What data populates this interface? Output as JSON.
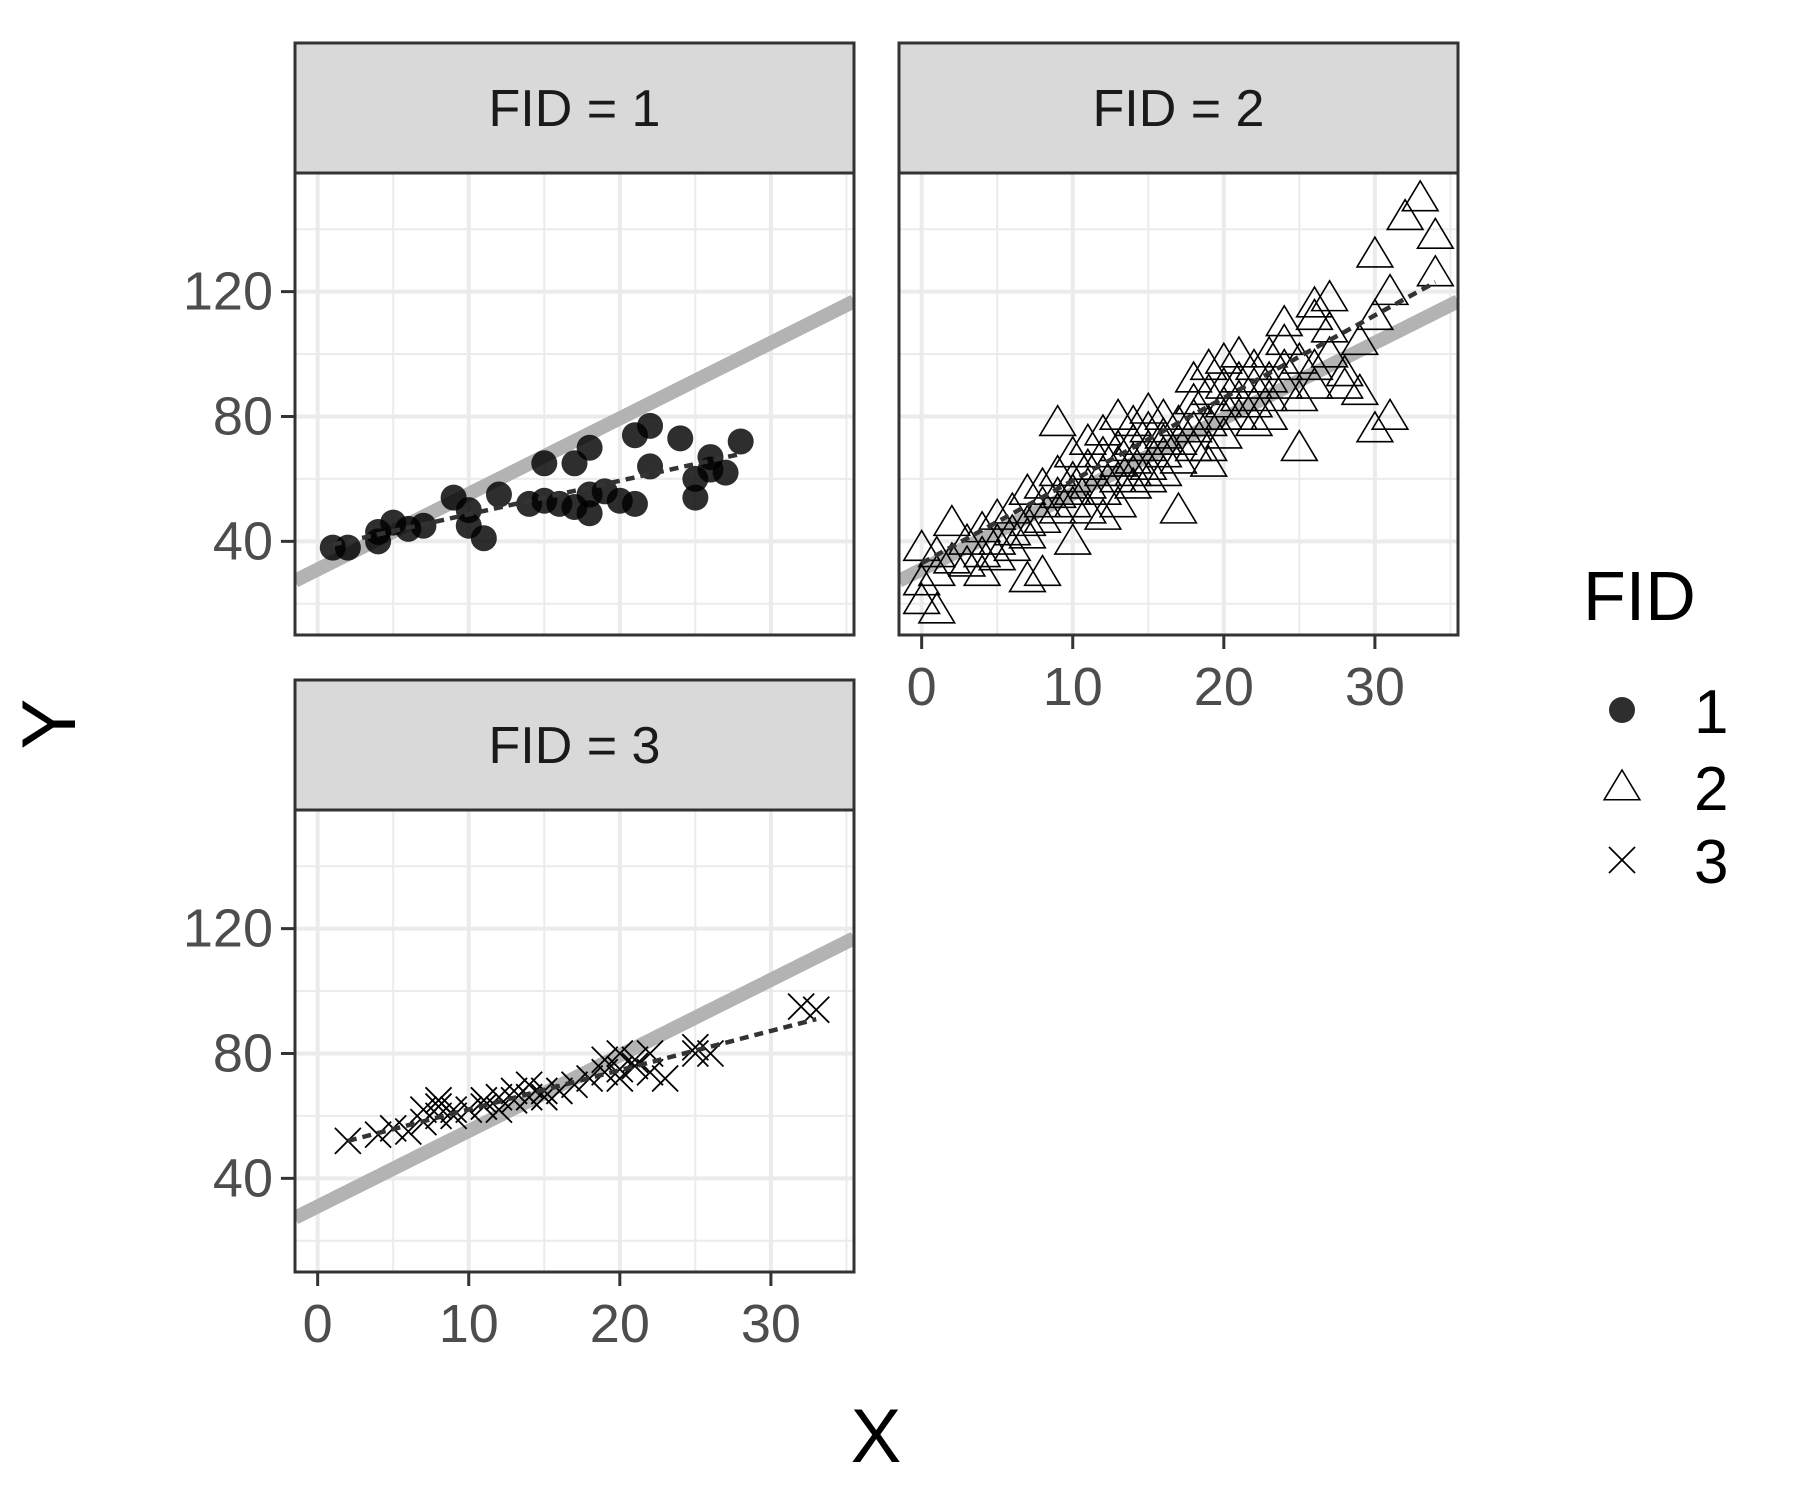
{
  "chart_data": {
    "type": "scatter",
    "facet_variable": "FID",
    "xlabel": "X",
    "ylabel": "Y",
    "xlim": [
      -1.5,
      35.5
    ],
    "ylim": [
      10,
      158
    ],
    "x_ticks": [
      0,
      10,
      20,
      30
    ],
    "y_ticks": [
      40,
      80,
      120
    ],
    "grid": true,
    "legend": {
      "title": "FID",
      "position": "right",
      "entries": [
        {
          "label": "1",
          "shape": "filled-circle"
        },
        {
          "label": "2",
          "shape": "open-triangle"
        },
        {
          "label": "3",
          "shape": "cross"
        }
      ]
    },
    "overall_line": {
      "intercept": 31,
      "slope": 2.42,
      "color": "#b3b3b3",
      "style": "solid-thick"
    },
    "facets": [
      {
        "strip": "FID = 1",
        "shape": "filled-circle",
        "fit_line": {
          "x": [
            1,
            28
          ],
          "y": [
            39,
            68
          ],
          "style": "dashed"
        },
        "points": [
          [
            1,
            38
          ],
          [
            2,
            38
          ],
          [
            4,
            40
          ],
          [
            4,
            43
          ],
          [
            5,
            46
          ],
          [
            6,
            44
          ],
          [
            7,
            45
          ],
          [
            9,
            54
          ],
          [
            10,
            45
          ],
          [
            10,
            50
          ],
          [
            11,
            41
          ],
          [
            12,
            55
          ],
          [
            14,
            52
          ],
          [
            15,
            53
          ],
          [
            15,
            65
          ],
          [
            16,
            52
          ],
          [
            17,
            51
          ],
          [
            17,
            65
          ],
          [
            18,
            70
          ],
          [
            18,
            49
          ],
          [
            18,
            55
          ],
          [
            19,
            56
          ],
          [
            20,
            53
          ],
          [
            21,
            52
          ],
          [
            21,
            74
          ],
          [
            22,
            64
          ],
          [
            22,
            77
          ],
          [
            24,
            73
          ],
          [
            25,
            54
          ],
          [
            25,
            60
          ],
          [
            26,
            63
          ],
          [
            26,
            67
          ],
          [
            27,
            62
          ],
          [
            28,
            72
          ]
        ]
      },
      {
        "strip": "FID = 2",
        "shape": "open-triangle",
        "fit_line": {
          "x": [
            0,
            34
          ],
          "y": [
            33,
            123
          ],
          "style": "dashed"
        },
        "points": [
          [
            0,
            21
          ],
          [
            0,
            27
          ],
          [
            0,
            38
          ],
          [
            1,
            18
          ],
          [
            1,
            30
          ],
          [
            1,
            36
          ],
          [
            2,
            34
          ],
          [
            2,
            46
          ],
          [
            3,
            33
          ],
          [
            3,
            40
          ],
          [
            4,
            36
          ],
          [
            4,
            44
          ],
          [
            4,
            30
          ],
          [
            5,
            40
          ],
          [
            5,
            48
          ],
          [
            5,
            35
          ],
          [
            6,
            43
          ],
          [
            6,
            50
          ],
          [
            6,
            38
          ],
          [
            7,
            46
          ],
          [
            7,
            56
          ],
          [
            7,
            28
          ],
          [
            7,
            42
          ],
          [
            8,
            52
          ],
          [
            8,
            47
          ],
          [
            8,
            30
          ],
          [
            8,
            58
          ],
          [
            9,
            55
          ],
          [
            9,
            50
          ],
          [
            9,
            62
          ],
          [
            9,
            78
          ],
          [
            10,
            56
          ],
          [
            10,
            60
          ],
          [
            10,
            52
          ],
          [
            10,
            40
          ],
          [
            10,
            68
          ],
          [
            11,
            58
          ],
          [
            11,
            64
          ],
          [
            11,
            50
          ],
          [
            11,
            72
          ],
          [
            12,
            62
          ],
          [
            12,
            68
          ],
          [
            12,
            56
          ],
          [
            12,
            75
          ],
          [
            12,
            48
          ],
          [
            13,
            65
          ],
          [
            13,
            70
          ],
          [
            13,
            60
          ],
          [
            13,
            80
          ],
          [
            13,
            52
          ],
          [
            14,
            66
          ],
          [
            14,
            72
          ],
          [
            14,
            58
          ],
          [
            14,
            78
          ],
          [
            14,
            62
          ],
          [
            15,
            70
          ],
          [
            15,
            76
          ],
          [
            15,
            64
          ],
          [
            15,
            82
          ],
          [
            15,
            60
          ],
          [
            16,
            68
          ],
          [
            16,
            74
          ],
          [
            16,
            62
          ],
          [
            16,
            80
          ],
          [
            16,
            72
          ],
          [
            17,
            72
          ],
          [
            17,
            78
          ],
          [
            17,
            66
          ],
          [
            17,
            50
          ],
          [
            18,
            76
          ],
          [
            18,
            80
          ],
          [
            18,
            70
          ],
          [
            18,
            92
          ],
          [
            18,
            85
          ],
          [
            19,
            78
          ],
          [
            19,
            88
          ],
          [
            19,
            70
          ],
          [
            19,
            96
          ],
          [
            19,
            65
          ],
          [
            20,
            80
          ],
          [
            20,
            90
          ],
          [
            20,
            74
          ],
          [
            20,
            98
          ],
          [
            20,
            84
          ],
          [
            21,
            86
          ],
          [
            21,
            92
          ],
          [
            21,
            80
          ],
          [
            21,
            100
          ],
          [
            22,
            90
          ],
          [
            22,
            96
          ],
          [
            22,
            84
          ],
          [
            22,
            78
          ],
          [
            23,
            92
          ],
          [
            23,
            100
          ],
          [
            23,
            86
          ],
          [
            23,
            80
          ],
          [
            24,
            96
          ],
          [
            24,
            104
          ],
          [
            24,
            90
          ],
          [
            24,
            110
          ],
          [
            25,
            98
          ],
          [
            25,
            86
          ],
          [
            25,
            70
          ],
          [
            26,
            112
          ],
          [
            26,
            96
          ],
          [
            26,
            90
          ],
          [
            26,
            116
          ],
          [
            27,
            108
          ],
          [
            27,
            100
          ],
          [
            27,
            118
          ],
          [
            28,
            94
          ],
          [
            28,
            90
          ],
          [
            29,
            104
          ],
          [
            29,
            88
          ],
          [
            30,
            132
          ],
          [
            30,
            112
          ],
          [
            30,
            76
          ],
          [
            31,
            120
          ],
          [
            31,
            80
          ],
          [
            32,
            144
          ],
          [
            33,
            150
          ],
          [
            34,
            138
          ],
          [
            34,
            126
          ]
        ]
      },
      {
        "strip": "FID = 3",
        "shape": "cross",
        "fit_line": {
          "x": [
            2,
            33
          ],
          "y": [
            52,
            91
          ],
          "style": "dashed"
        },
        "points": [
          [
            2,
            52
          ],
          [
            4,
            54
          ],
          [
            5,
            56
          ],
          [
            6,
            55
          ],
          [
            7,
            58
          ],
          [
            7,
            62
          ],
          [
            8,
            60
          ],
          [
            8,
            63
          ],
          [
            8,
            65
          ],
          [
            9,
            62
          ],
          [
            9,
            60
          ],
          [
            10,
            62
          ],
          [
            11,
            65
          ],
          [
            11,
            63
          ],
          [
            12,
            62
          ],
          [
            12,
            66
          ],
          [
            13,
            65
          ],
          [
            13,
            68
          ],
          [
            14,
            66
          ],
          [
            14,
            70
          ],
          [
            15,
            68
          ],
          [
            15,
            66
          ],
          [
            16,
            68
          ],
          [
            17,
            70
          ],
          [
            18,
            72
          ],
          [
            19,
            74
          ],
          [
            19,
            78
          ],
          [
            20,
            75
          ],
          [
            20,
            80
          ],
          [
            20,
            72
          ],
          [
            21,
            78
          ],
          [
            21,
            76
          ],
          [
            22,
            74
          ],
          [
            22,
            80
          ],
          [
            23,
            72
          ],
          [
            25,
            82
          ],
          [
            25,
            80
          ],
          [
            26,
            80
          ],
          [
            32,
            95
          ],
          [
            33,
            94
          ]
        ]
      }
    ]
  }
}
